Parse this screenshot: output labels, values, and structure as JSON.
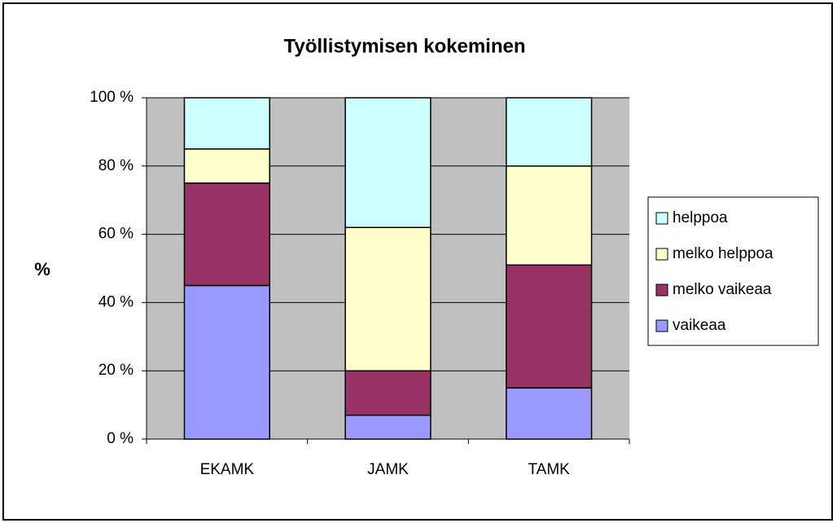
{
  "chart_data": {
    "type": "stacked_bar",
    "title": "Työllistymisen kokeminen",
    "y_label": "%",
    "categories": [
      "EKAMK",
      "JAMK",
      "TAMK"
    ],
    "series": [
      {
        "name": "vaikeaa",
        "color": "#9999ff",
        "values": [
          45,
          7,
          15
        ]
      },
      {
        "name": "melko vaikeaa",
        "color": "#993366",
        "values": [
          30,
          13,
          36
        ]
      },
      {
        "name": "melko helppoa",
        "color": "#ffffcc",
        "values": [
          10,
          42,
          29
        ]
      },
      {
        "name": "helppoa",
        "color": "#ccffff",
        "values": [
          15,
          38,
          20
        ]
      }
    ],
    "ylim": [
      0,
      100
    ],
    "yticks": [
      {
        "value": 0,
        "label": "0 %"
      },
      {
        "value": 20,
        "label": "20 %"
      },
      {
        "value": 40,
        "label": "40 %"
      },
      {
        "value": 60,
        "label": "60 %"
      },
      {
        "value": 80,
        "label": "80 %"
      },
      {
        "value": 100,
        "label": "100 %"
      }
    ],
    "grid": true,
    "legend": "right"
  }
}
